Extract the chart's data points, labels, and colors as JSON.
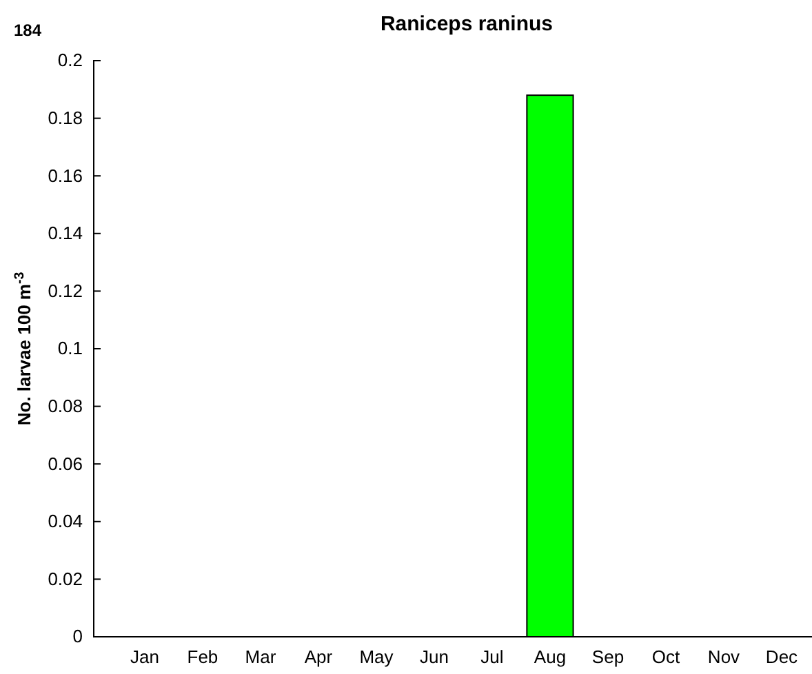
{
  "chart_data": {
    "type": "bar",
    "title": "Raniceps raninus",
    "ylabel": "No. larvae 100 m$^{-3}$",
    "annotations": [
      "184"
    ],
    "categories": [
      "Jan",
      "Feb",
      "Mar",
      "Apr",
      "May",
      "Jun",
      "Jul",
      "Aug",
      "Sep",
      "Oct",
      "Nov",
      "Dec"
    ],
    "values": [
      0,
      0,
      0,
      0,
      0,
      0,
      0,
      0.188,
      0,
      0,
      0,
      0
    ],
    "color": "#00ff00",
    "ylim": [
      0,
      0.2
    ],
    "yticks": [
      0,
      0.02,
      0.04,
      0.06,
      0.08,
      0.1,
      0.12,
      0.14,
      0.16,
      0.18,
      0.2
    ]
  }
}
